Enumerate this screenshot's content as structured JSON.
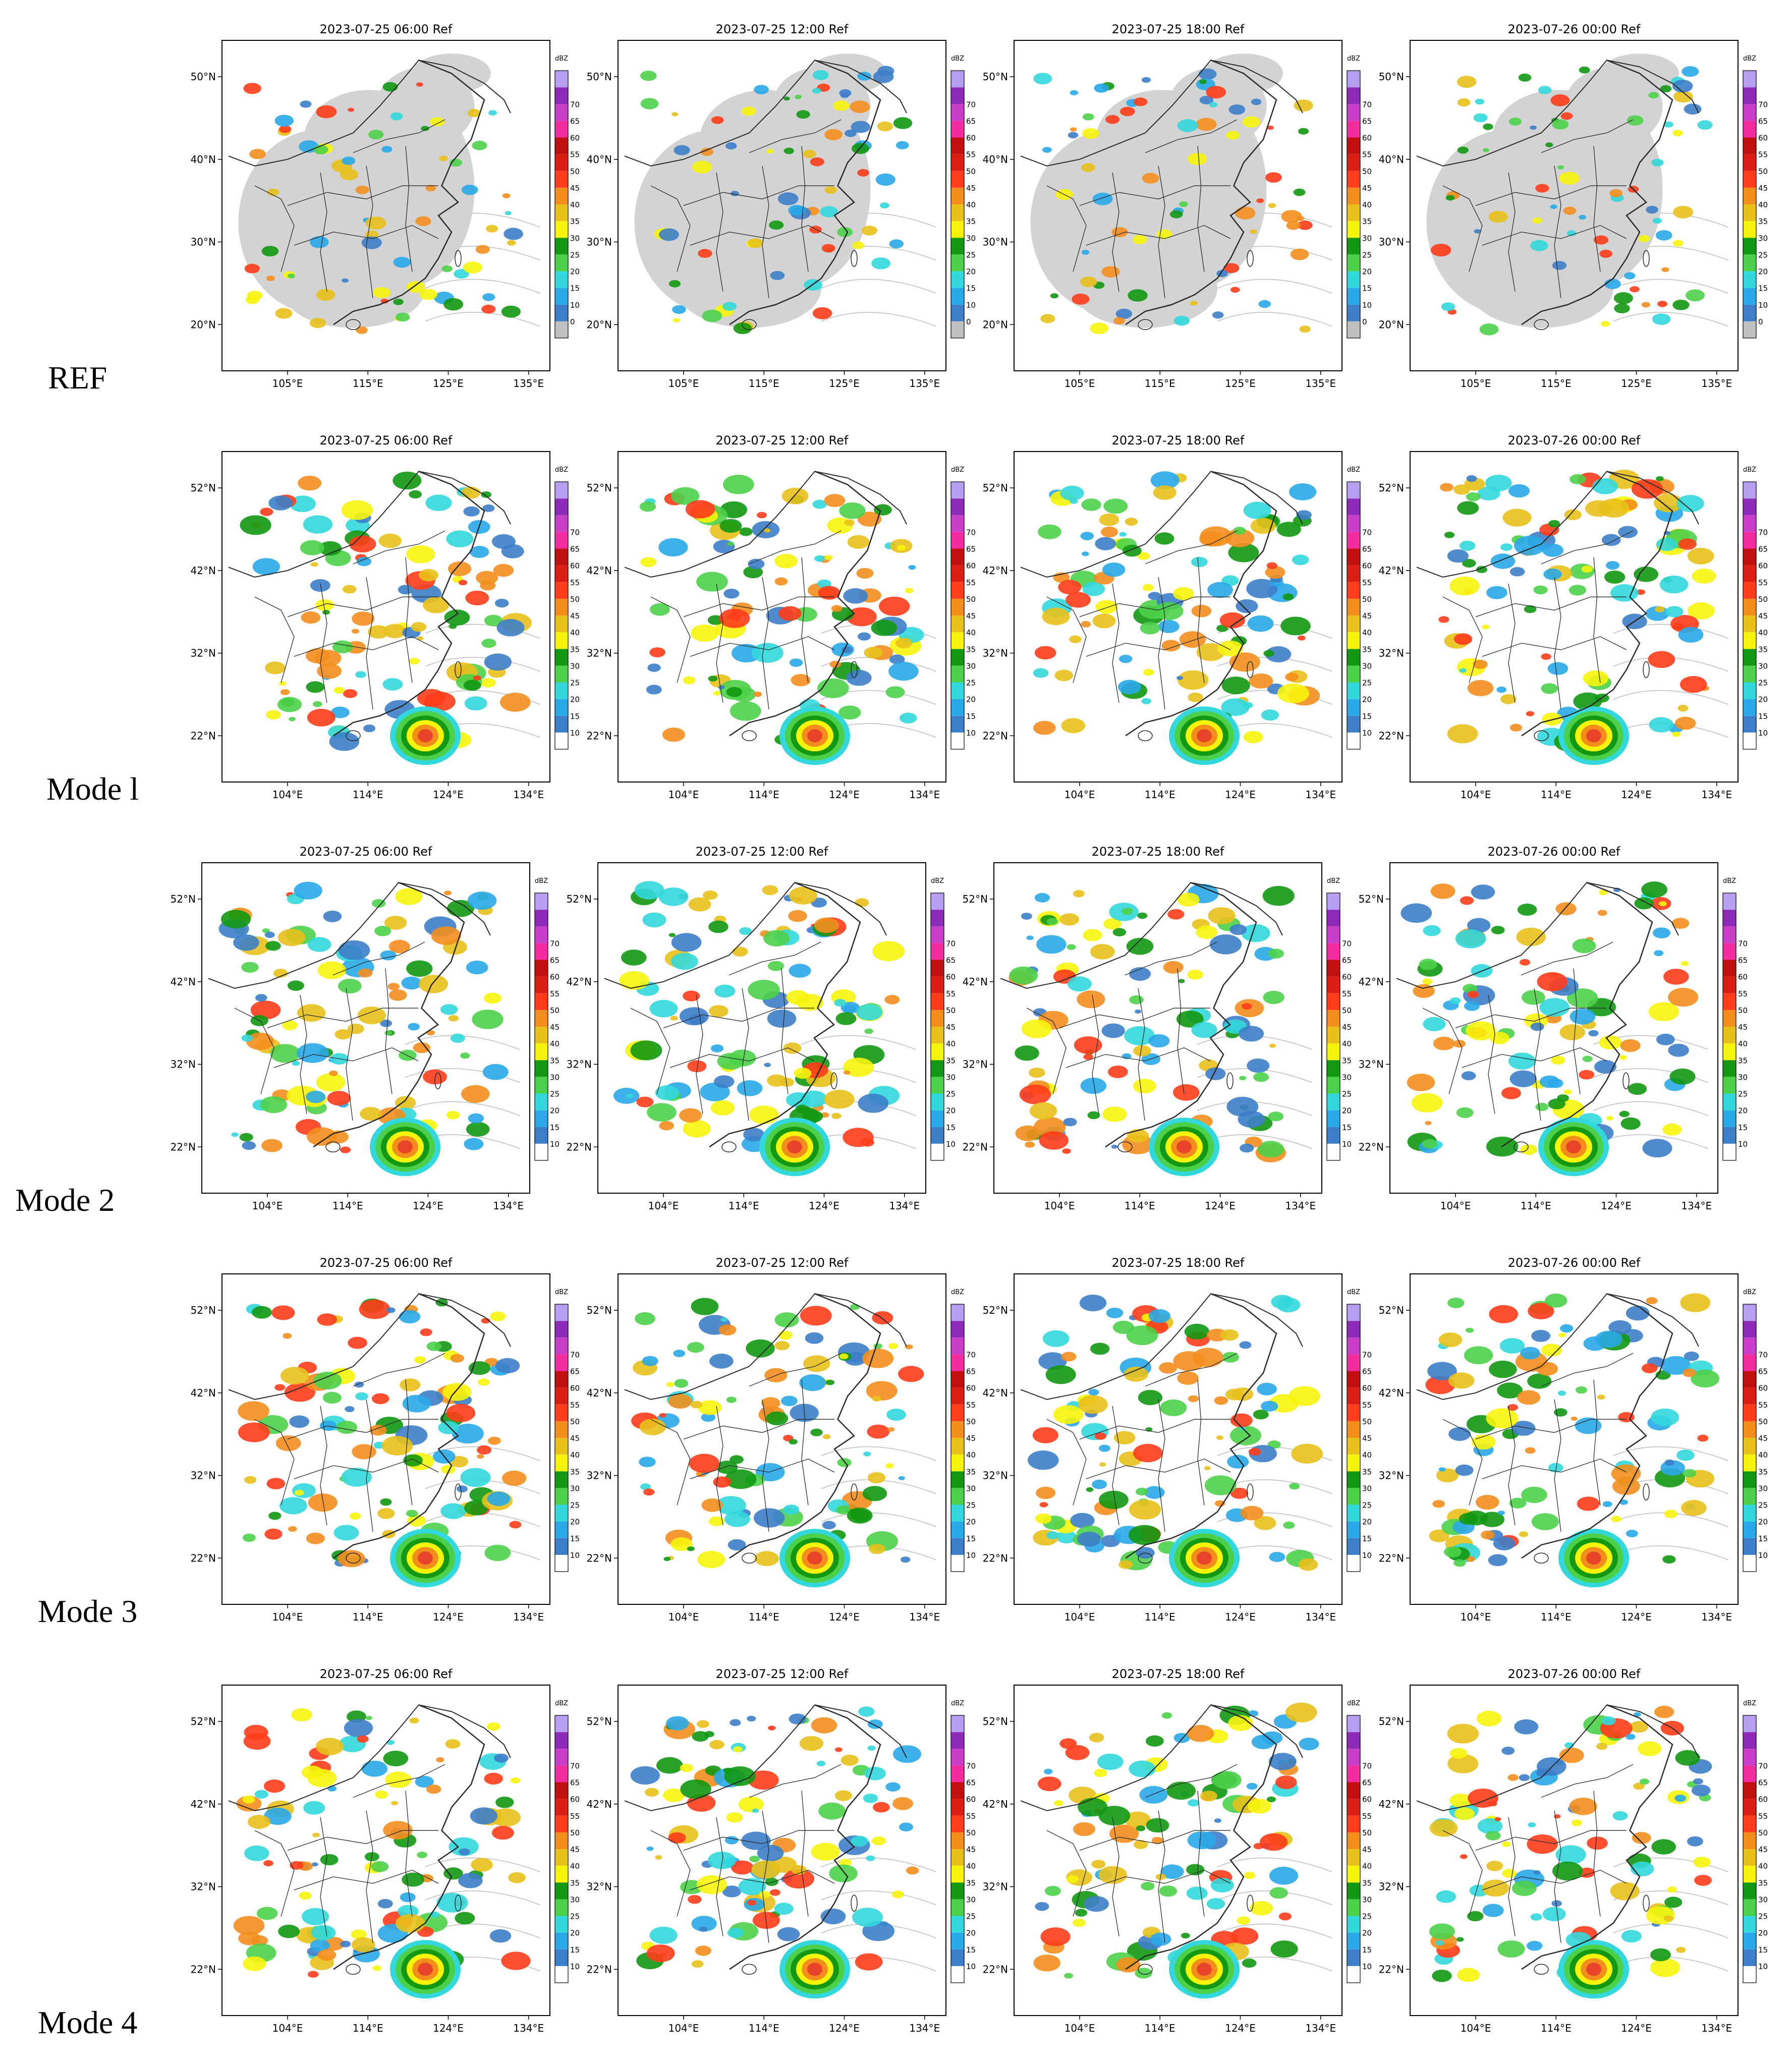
{
  "figure": {
    "rows": [
      {
        "label": "REF",
        "lat_ticks": [
          "50°N",
          "40°N",
          "30°N",
          "20°N"
        ],
        "lon_ticks": [
          "105°E",
          "115°E",
          "125°E",
          "135°E"
        ],
        "panels": [
          {
            "title": "2023-07-25 06:00 Ref"
          },
          {
            "title": "2023-07-25 12:00 Ref"
          },
          {
            "title": "2023-07-25 18:00 Ref"
          },
          {
            "title": "2023-07-26 00:00 Ref"
          }
        ]
      },
      {
        "label": "Mode l",
        "lat_ticks": [
          "52°N",
          "42°N",
          "32°N",
          "22°N"
        ],
        "lon_ticks": [
          "104°E",
          "114°E",
          "124°E",
          "134°E"
        ],
        "panels": [
          {
            "title": "2023-07-25 06:00 Ref"
          },
          {
            "title": "2023-07-25 12:00 Ref"
          },
          {
            "title": "2023-07-25 18:00 Ref"
          },
          {
            "title": "2023-07-26 00:00 Ref"
          }
        ]
      },
      {
        "label": "Mode 2",
        "lat_ticks": [
          "52°N",
          "42°N",
          "32°N",
          "22°N"
        ],
        "lon_ticks": [
          "104°E",
          "114°E",
          "124°E",
          "134°E"
        ],
        "panels": [
          {
            "title": "2023-07-25 06:00 Ref"
          },
          {
            "title": "2023-07-25 12:00 Ref"
          },
          {
            "title": "2023-07-25 18:00 Ref"
          },
          {
            "title": "2023-07-26 00:00 Ref"
          }
        ]
      },
      {
        "label": "Mode 3",
        "lat_ticks": [
          "52°N",
          "42°N",
          "32°N",
          "22°N"
        ],
        "lon_ticks": [
          "104°E",
          "114°E",
          "124°E",
          "134°E"
        ],
        "panels": [
          {
            "title": "2023-07-25 06:00 Ref"
          },
          {
            "title": "2023-07-25 12:00 Ref"
          },
          {
            "title": "2023-07-25 18:00 Ref"
          },
          {
            "title": "2023-07-26 00:00 Ref"
          }
        ]
      },
      {
        "label": "Mode 4",
        "lat_ticks": [
          "52°N",
          "42°N",
          "32°N",
          "22°N"
        ],
        "lon_ticks": [
          "104°E",
          "114°E",
          "124°E",
          "134°E"
        ],
        "panels": [
          {
            "title": "2023-07-25 06:00 Ref"
          },
          {
            "title": "2023-07-25 12:00 Ref"
          },
          {
            "title": "2023-07-25 18:00 Ref"
          },
          {
            "title": "2023-07-26 00:00 Ref"
          }
        ]
      }
    ],
    "colorbar": {
      "unit": "dBZ",
      "ref_ticks": [
        "70",
        "65",
        "60",
        "55",
        "50",
        "45",
        "40",
        "35",
        "30",
        "25",
        "20",
        "15",
        "10",
        "0"
      ],
      "mode_ticks": [
        "70",
        "65",
        "60",
        "55",
        "50",
        "45",
        "40",
        "35",
        "30",
        "25",
        "20",
        "15",
        "10"
      ],
      "ref_colors": [
        "#c0c0c0",
        "#3c7ec8",
        "#29a9e8",
        "#32d8dc",
        "#4cd049",
        "#129812",
        "#f7f40c",
        "#e8c11a",
        "#f38e1d",
        "#ff3c1b",
        "#dc1f14",
        "#c01010",
        "#f32ca0",
        "#c83ec8",
        "#8e2ab8",
        "#b79ef0"
      ],
      "mode_colors": [
        "#ffffff",
        "#3c7ec8",
        "#29a9e8",
        "#32d8dc",
        "#4cd049",
        "#129812",
        "#f7f40c",
        "#e8c11a",
        "#f38e1d",
        "#ff3c1b",
        "#dc1f14",
        "#c01010",
        "#f32ca0",
        "#c83ec8",
        "#8e2ab8",
        "#b79ef0"
      ]
    },
    "colors": {
      "ref_shading": "#d3d3d3",
      "boundary": "#2b2b2b",
      "bathymetry": "#bdbdbd",
      "typhoon_core": "#e8442a"
    }
  }
}
